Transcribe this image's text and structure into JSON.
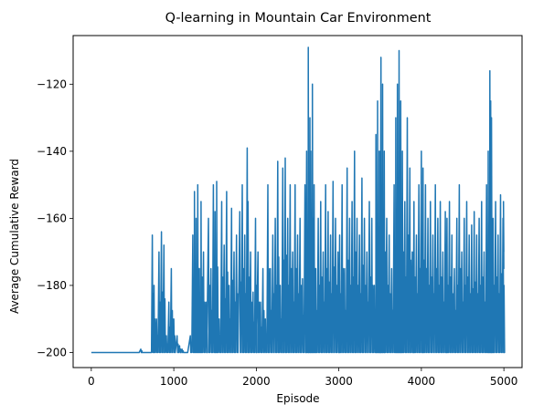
{
  "chart_data": {
    "type": "line",
    "title": "Q-learning in Mountain Car Environment",
    "xlabel": "Episode",
    "ylabel": "Average Cumulative Reward",
    "xlim": [
      -220,
      5220
    ],
    "ylim": [
      -204.5,
      -105.5
    ],
    "xticks": [
      0,
      1000,
      2000,
      3000,
      4000,
      5000
    ],
    "yticks": [
      -200,
      -180,
      -160,
      -140,
      -120
    ],
    "ytick_labels": [
      "−200",
      "−180",
      "−160",
      "−140",
      "−120"
    ],
    "grid": false,
    "legend": "none",
    "series": [
      {
        "color": "#1f77b4",
        "segments": [
          {
            "x0": 0,
            "x1": 580,
            "base": -200,
            "points": []
          },
          {
            "x0": 580,
            "x1": 730,
            "base": -200,
            "points": [
              [
                600,
                -199
              ],
              [
                605,
                -200
              ]
            ]
          },
          {
            "x0": 730,
            "x1": 1080,
            "base": -200,
            "points": [
              [
                740,
                -165
              ],
              [
                760,
                -180
              ],
              [
                790,
                -190
              ],
              [
                820,
                -170
              ],
              [
                850,
                -164
              ],
              [
                880,
                -168
              ],
              [
                910,
                -195
              ],
              [
                940,
                -185
              ],
              [
                970,
                -175
              ],
              [
                1000,
                -190
              ],
              [
                1040,
                -195
              ],
              [
                1070,
                -198
              ]
            ]
          },
          {
            "x0": 1080,
            "x1": 1400,
            "base": -200,
            "points": [
              [
                1100,
                -199
              ],
              [
                1150,
                -200
              ],
              [
                1200,
                -195
              ],
              [
                1230,
                -165
              ],
              [
                1250,
                -152
              ],
              [
                1270,
                -160
              ],
              [
                1290,
                -150
              ],
              [
                1310,
                -175
              ],
              [
                1330,
                -155
              ],
              [
                1360,
                -170
              ],
              [
                1390,
                -185
              ]
            ]
          },
          {
            "x0": 1400,
            "x1": 2000,
            "base": -200,
            "points": [
              [
                1420,
                -160
              ],
              [
                1450,
                -175
              ],
              [
                1480,
                -150
              ],
              [
                1500,
                -158
              ],
              [
                1520,
                -149
              ],
              [
                1550,
                -190
              ],
              [
                1580,
                -155
              ],
              [
                1610,
                -168
              ],
              [
                1640,
                -152
              ],
              [
                1670,
                -180
              ],
              [
                1700,
                -157
              ],
              [
                1730,
                -170
              ],
              [
                1760,
                -165
              ],
              [
                1800,
                -158
              ],
              [
                1830,
                -150
              ],
              [
                1860,
                -165
              ],
              [
                1890,
                -139
              ],
              [
                1900,
                -155
              ],
              [
                1930,
                -170
              ],
              [
                1960,
                -182
              ],
              [
                1990,
                -160
              ]
            ]
          },
          {
            "x0": 2000,
            "x1": 2600,
            "base": -200,
            "points": [
              [
                2020,
                -170
              ],
              [
                2050,
                -185
              ],
              [
                2080,
                -175
              ],
              [
                2110,
                -190
              ],
              [
                2140,
                -150
              ],
              [
                2170,
                -175
              ],
              [
                2200,
                -165
              ],
              [
                2230,
                -160
              ],
              [
                2260,
                -143
              ],
              [
                2290,
                -180
              ],
              [
                2320,
                -145
              ],
              [
                2350,
                -142
              ],
              [
                2380,
                -160
              ],
              [
                2410,
                -150
              ],
              [
                2440,
                -170
              ],
              [
                2470,
                -150
              ],
              [
                2500,
                -165
              ],
              [
                2530,
                -160
              ],
              [
                2560,
                -178
              ],
              [
                2590,
                -150
              ]
            ]
          },
          {
            "x0": 2600,
            "x1": 3000,
            "base": -200,
            "points": [
              [
                2610,
                -140
              ],
              [
                2630,
                -109
              ],
              [
                2650,
                -130
              ],
              [
                2660,
                -140
              ],
              [
                2680,
                -120
              ],
              [
                2700,
                -150
              ],
              [
                2720,
                -175
              ],
              [
                2750,
                -160
              ],
              [
                2780,
                -155
              ],
              [
                2810,
                -170
              ],
              [
                2840,
                -150
              ],
              [
                2870,
                -158
              ],
              [
                2900,
                -165
              ],
              [
                2930,
                -149
              ],
              [
                2960,
                -160
              ],
              [
                2990,
                -170
              ]
            ]
          },
          {
            "x0": 3000,
            "x1": 3500,
            "base": -200,
            "points": [
              [
                3010,
                -165
              ],
              [
                3040,
                -150
              ],
              [
                3070,
                -175
              ],
              [
                3100,
                -145
              ],
              [
                3130,
                -160
              ],
              [
                3160,
                -155
              ],
              [
                3190,
                -140
              ],
              [
                3220,
                -160
              ],
              [
                3250,
                -165
              ],
              [
                3280,
                -148
              ],
              [
                3310,
                -160
              ],
              [
                3340,
                -170
              ],
              [
                3370,
                -155
              ],
              [
                3400,
                -160
              ],
              [
                3430,
                -180
              ],
              [
                3450,
                -135
              ],
              [
                3470,
                -125
              ],
              [
                3490,
                -140
              ]
            ]
          },
          {
            "x0": 3500,
            "x1": 3900,
            "base": -200,
            "points": [
              [
                3510,
                -112
              ],
              [
                3530,
                -120
              ],
              [
                3550,
                -140
              ],
              [
                3580,
                -160
              ],
              [
                3610,
                -165
              ],
              [
                3640,
                -175
              ],
              [
                3670,
                -150
              ],
              [
                3690,
                -130
              ],
              [
                3710,
                -120
              ],
              [
                3730,
                -110
              ],
              [
                3750,
                -125
              ],
              [
                3770,
                -140
              ],
              [
                3800,
                -155
              ],
              [
                3830,
                -130
              ],
              [
                3860,
                -145
              ],
              [
                3890,
                -170
              ]
            ]
          },
          {
            "x0": 3900,
            "x1": 4300,
            "base": -200,
            "points": [
              [
                3910,
                -155
              ],
              [
                3940,
                -165
              ],
              [
                3970,
                -150
              ],
              [
                4000,
                -140
              ],
              [
                4020,
                -145
              ],
              [
                4050,
                -150
              ],
              [
                4080,
                -160
              ],
              [
                4110,
                -155
              ],
              [
                4140,
                -165
              ],
              [
                4170,
                -150
              ],
              [
                4200,
                -160
              ],
              [
                4230,
                -155
              ],
              [
                4260,
                -170
              ],
              [
                4290,
                -158
              ]
            ]
          },
          {
            "x0": 4300,
            "x1": 4780,
            "base": -200,
            "points": [
              [
                4310,
                -160
              ],
              [
                4340,
                -155
              ],
              [
                4370,
                -165
              ],
              [
                4400,
                -175
              ],
              [
                4430,
                -160
              ],
              [
                4460,
                -150
              ],
              [
                4490,
                -170
              ],
              [
                4520,
                -160
              ],
              [
                4550,
                -155
              ],
              [
                4580,
                -165
              ],
              [
                4610,
                -162
              ],
              [
                4640,
                -158
              ],
              [
                4670,
                -165
              ],
              [
                4700,
                -160
              ],
              [
                4730,
                -155
              ],
              [
                4760,
                -170
              ]
            ]
          },
          {
            "x0": 4780,
            "x1": 5000,
            "base": -200,
            "points": [
              [
                4790,
                -150
              ],
              [
                4810,
                -140
              ],
              [
                4830,
                -116
              ],
              [
                4840,
                -125
              ],
              [
                4850,
                -130
              ],
              [
                4870,
                -160
              ],
              [
                4900,
                -155
              ],
              [
                4930,
                -165
              ],
              [
                4960,
                -153
              ],
              [
                4990,
                -160
              ]
            ]
          }
        ],
        "tail": [
          [
            4990,
            -160
          ],
          [
            5000,
            -175
          ],
          [
            4995,
            -155
          ],
          [
            5000,
            -170
          ]
        ]
      }
    ]
  }
}
